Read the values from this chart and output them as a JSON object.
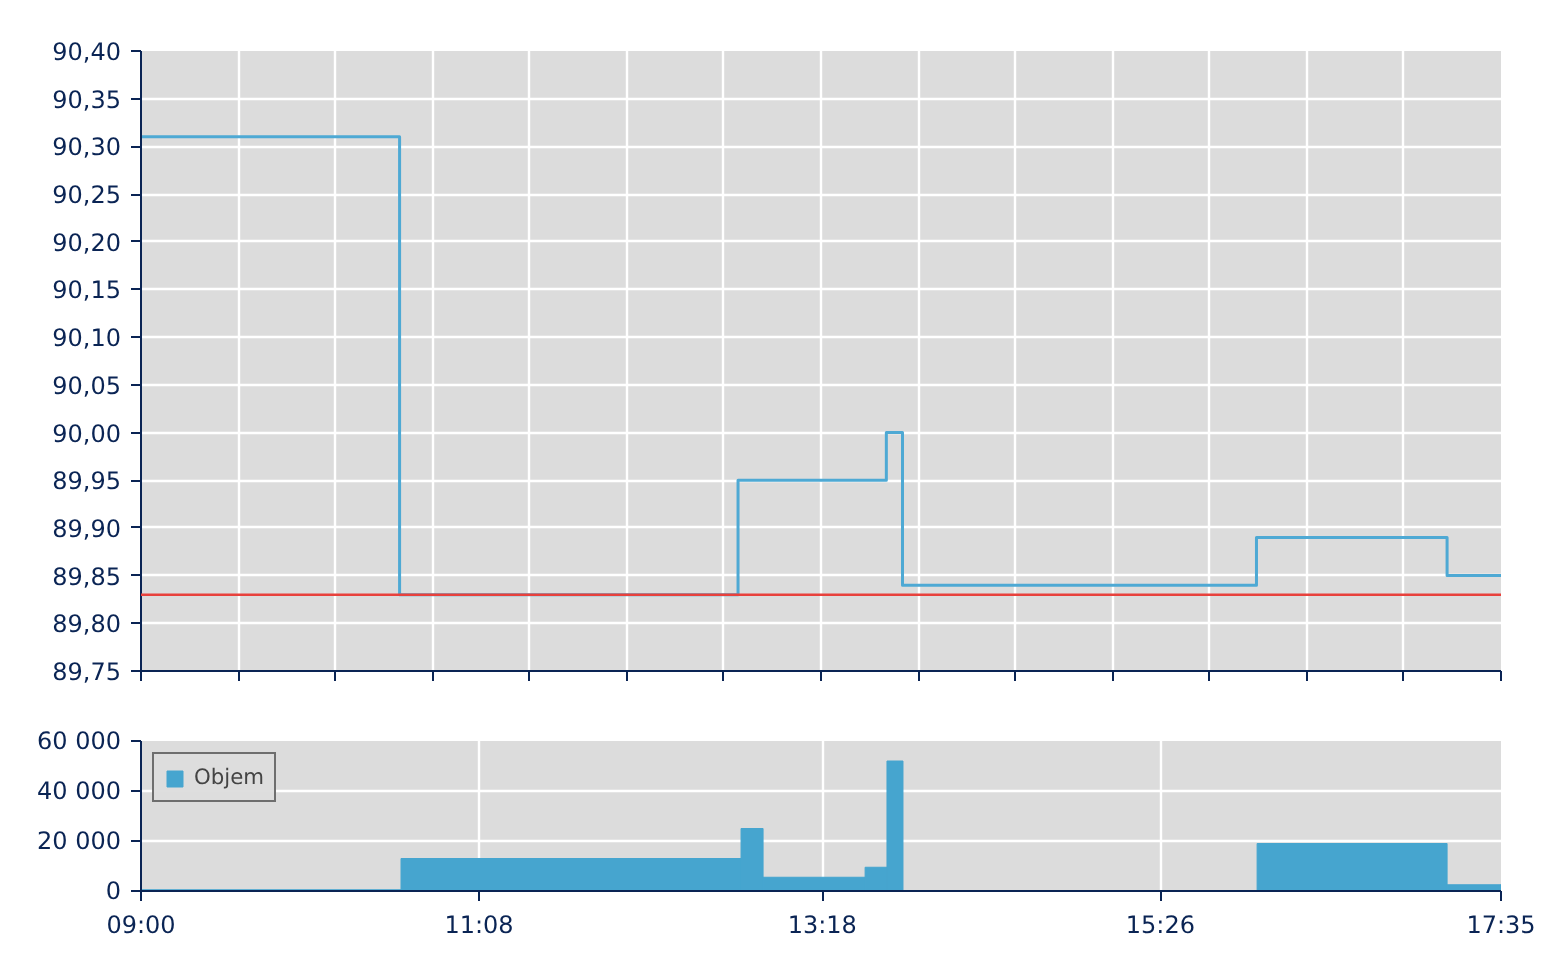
{
  "chart_data": [
    {
      "type": "step",
      "xlim": [
        9,
        17.5833
      ],
      "ylim": [
        89.75,
        90.4
      ],
      "x": [
        9,
        10.632,
        12.768,
        13.704,
        13.806,
        16.04,
        17.243,
        17.5833
      ],
      "series": [
        {
          "color": "#4ea9d4",
          "values": [
            90.31,
            89.83,
            89.95,
            90.0,
            89.84,
            89.89,
            89.85,
            89.85
          ]
        }
      ],
      "ref_lines": [
        {
          "axis": "y",
          "value": 89.83,
          "color": "#e8413c"
        }
      ],
      "xticks": [
        {
          "value": 9,
          "label": null
        },
        {
          "value": 9.6131,
          "label": null
        },
        {
          "value": 10.2262,
          "label": null
        },
        {
          "value": 10.8393,
          "label": null
        },
        {
          "value": 11.4524,
          "label": null
        },
        {
          "value": 12.0655,
          "label": null
        },
        {
          "value": 12.6786,
          "label": null
        },
        {
          "value": 13.2917,
          "label": null
        },
        {
          "value": 13.9048,
          "label": null
        },
        {
          "value": 14.5179,
          "label": null
        },
        {
          "value": 15.131,
          "label": null
        },
        {
          "value": 15.744,
          "label": null
        },
        {
          "value": 16.3571,
          "label": null
        },
        {
          "value": 16.9702,
          "label": null
        },
        {
          "value": 17.5833,
          "label": null
        }
      ],
      "yticks": [
        {
          "value": 89.75,
          "label": "89,75"
        },
        {
          "value": 89.8,
          "label": "89,80"
        },
        {
          "value": 89.85,
          "label": "89,85"
        },
        {
          "value": 89.9,
          "label": "89,90"
        },
        {
          "value": 89.95,
          "label": "89,95"
        },
        {
          "value": 90.0,
          "label": "90,00"
        },
        {
          "value": 90.05,
          "label": "90,05"
        },
        {
          "value": 90.1,
          "label": "90,10"
        },
        {
          "value": 90.15,
          "label": "90,15"
        },
        {
          "value": 90.2,
          "label": "90,20"
        },
        {
          "value": 90.25,
          "label": "90,25"
        },
        {
          "value": 90.3,
          "label": "90,30"
        },
        {
          "value": 90.35,
          "label": "90,35"
        },
        {
          "value": 90.4,
          "label": "90,40"
        }
      ],
      "grid": true,
      "tick_labels": "y",
      "line_style": "solid",
      "marker": "none"
    },
    {
      "type": "histogram",
      "xlim": [
        9,
        17.5833
      ],
      "ylim": [
        0,
        60000
      ],
      "bins": [
        9,
        10.641,
        12.787,
        12.926,
        13.57,
        13.708,
        13.809,
        16.044,
        17.243,
        17.5833
      ],
      "series": [
        {
          "name": "Objem",
          "color": "#46a5cf",
          "values": [
            500,
            13000,
            25000,
            5500,
            9500,
            52000,
            0,
            19000,
            2500
          ]
        }
      ],
      "xticks": [
        {
          "value": 9,
          "label": "09:00"
        },
        {
          "value": 11.1333,
          "label": "11:08"
        },
        {
          "value": 13.3,
          "label": "13:18"
        },
        {
          "value": 15.4333,
          "label": "15:26"
        },
        {
          "value": 17.5833,
          "label": "17:35"
        }
      ],
      "yticks": [
        {
          "value": 0,
          "label": "0"
        },
        {
          "value": 20000,
          "label": "20 000"
        },
        {
          "value": 40000,
          "label": "40 000"
        },
        {
          "value": 60000,
          "label": "60 000"
        }
      ],
      "grid": true,
      "legend": "top left"
    }
  ]
}
